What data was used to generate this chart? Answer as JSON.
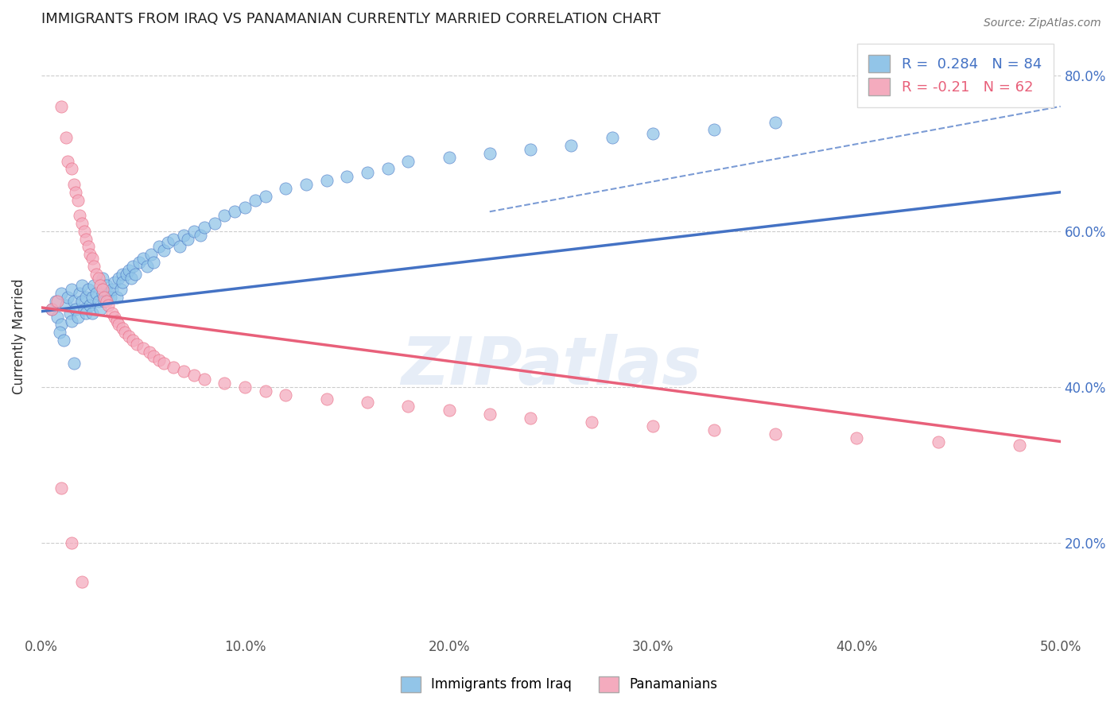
{
  "title": "IMMIGRANTS FROM IRAQ VS PANAMANIAN CURRENTLY MARRIED CORRELATION CHART",
  "source_text": "Source: ZipAtlas.com",
  "ylabel": "Currently Married",
  "xlim": [
    0.0,
    0.5
  ],
  "ylim": [
    0.08,
    0.85
  ],
  "xtick_labels": [
    "0.0%",
    "10.0%",
    "20.0%",
    "30.0%",
    "40.0%",
    "50.0%"
  ],
  "xtick_vals": [
    0.0,
    0.1,
    0.2,
    0.3,
    0.4,
    0.5
  ],
  "ytick_labels": [
    "20.0%",
    "40.0%",
    "60.0%",
    "80.0%"
  ],
  "ytick_vals": [
    0.2,
    0.4,
    0.6,
    0.8
  ],
  "R_blue": 0.284,
  "N_blue": 84,
  "R_pink": -0.21,
  "N_pink": 62,
  "blue_color": "#92C5E8",
  "pink_color": "#F4ABBE",
  "blue_line_color": "#4472C4",
  "pink_line_color": "#E8607A",
  "watermark": "ZIPatlas",
  "legend_label_blue": "Immigrants from Iraq",
  "legend_label_pink": "Panamanians",
  "blue_scatter_x": [
    0.005,
    0.007,
    0.008,
    0.01,
    0.01,
    0.012,
    0.013,
    0.014,
    0.015,
    0.015,
    0.016,
    0.017,
    0.018,
    0.019,
    0.02,
    0.02,
    0.021,
    0.022,
    0.022,
    0.023,
    0.024,
    0.025,
    0.025,
    0.026,
    0.027,
    0.028,
    0.029,
    0.03,
    0.03,
    0.031,
    0.032,
    0.033,
    0.034,
    0.035,
    0.036,
    0.037,
    0.038,
    0.039,
    0.04,
    0.04,
    0.042,
    0.043,
    0.044,
    0.045,
    0.046,
    0.048,
    0.05,
    0.052,
    0.054,
    0.055,
    0.058,
    0.06,
    0.062,
    0.065,
    0.068,
    0.07,
    0.072,
    0.075,
    0.078,
    0.08,
    0.085,
    0.09,
    0.095,
    0.1,
    0.105,
    0.11,
    0.12,
    0.13,
    0.14,
    0.15,
    0.16,
    0.17,
    0.18,
    0.2,
    0.22,
    0.24,
    0.26,
    0.28,
    0.3,
    0.33,
    0.36,
    0.009,
    0.011,
    0.016
  ],
  "blue_scatter_y": [
    0.5,
    0.51,
    0.49,
    0.52,
    0.48,
    0.505,
    0.515,
    0.495,
    0.525,
    0.485,
    0.51,
    0.5,
    0.49,
    0.52,
    0.53,
    0.51,
    0.5,
    0.515,
    0.495,
    0.525,
    0.505,
    0.515,
    0.495,
    0.53,
    0.52,
    0.51,
    0.5,
    0.54,
    0.52,
    0.51,
    0.53,
    0.52,
    0.515,
    0.525,
    0.535,
    0.515,
    0.54,
    0.525,
    0.545,
    0.535,
    0.545,
    0.55,
    0.54,
    0.555,
    0.545,
    0.56,
    0.565,
    0.555,
    0.57,
    0.56,
    0.58,
    0.575,
    0.585,
    0.59,
    0.58,
    0.595,
    0.59,
    0.6,
    0.595,
    0.605,
    0.61,
    0.62,
    0.625,
    0.63,
    0.64,
    0.645,
    0.655,
    0.66,
    0.665,
    0.67,
    0.675,
    0.68,
    0.69,
    0.695,
    0.7,
    0.705,
    0.71,
    0.72,
    0.725,
    0.73,
    0.74,
    0.47,
    0.46,
    0.43
  ],
  "pink_scatter_x": [
    0.005,
    0.008,
    0.01,
    0.012,
    0.013,
    0.015,
    0.016,
    0.017,
    0.018,
    0.019,
    0.02,
    0.021,
    0.022,
    0.023,
    0.024,
    0.025,
    0.026,
    0.027,
    0.028,
    0.029,
    0.03,
    0.031,
    0.032,
    0.033,
    0.035,
    0.036,
    0.037,
    0.038,
    0.04,
    0.041,
    0.043,
    0.045,
    0.047,
    0.05,
    0.053,
    0.055,
    0.058,
    0.06,
    0.065,
    0.07,
    0.075,
    0.08,
    0.09,
    0.1,
    0.11,
    0.12,
    0.14,
    0.16,
    0.18,
    0.2,
    0.22,
    0.24,
    0.27,
    0.3,
    0.33,
    0.36,
    0.4,
    0.44,
    0.48,
    0.01,
    0.015,
    0.02
  ],
  "pink_scatter_y": [
    0.5,
    0.51,
    0.76,
    0.72,
    0.69,
    0.68,
    0.66,
    0.65,
    0.64,
    0.62,
    0.61,
    0.6,
    0.59,
    0.58,
    0.57,
    0.565,
    0.555,
    0.545,
    0.54,
    0.53,
    0.525,
    0.515,
    0.51,
    0.505,
    0.495,
    0.49,
    0.485,
    0.48,
    0.475,
    0.47,
    0.465,
    0.46,
    0.455,
    0.45,
    0.445,
    0.44,
    0.435,
    0.43,
    0.425,
    0.42,
    0.415,
    0.41,
    0.405,
    0.4,
    0.395,
    0.39,
    0.385,
    0.38,
    0.375,
    0.37,
    0.365,
    0.36,
    0.355,
    0.35,
    0.345,
    0.34,
    0.335,
    0.33,
    0.325,
    0.27,
    0.2,
    0.15
  ]
}
